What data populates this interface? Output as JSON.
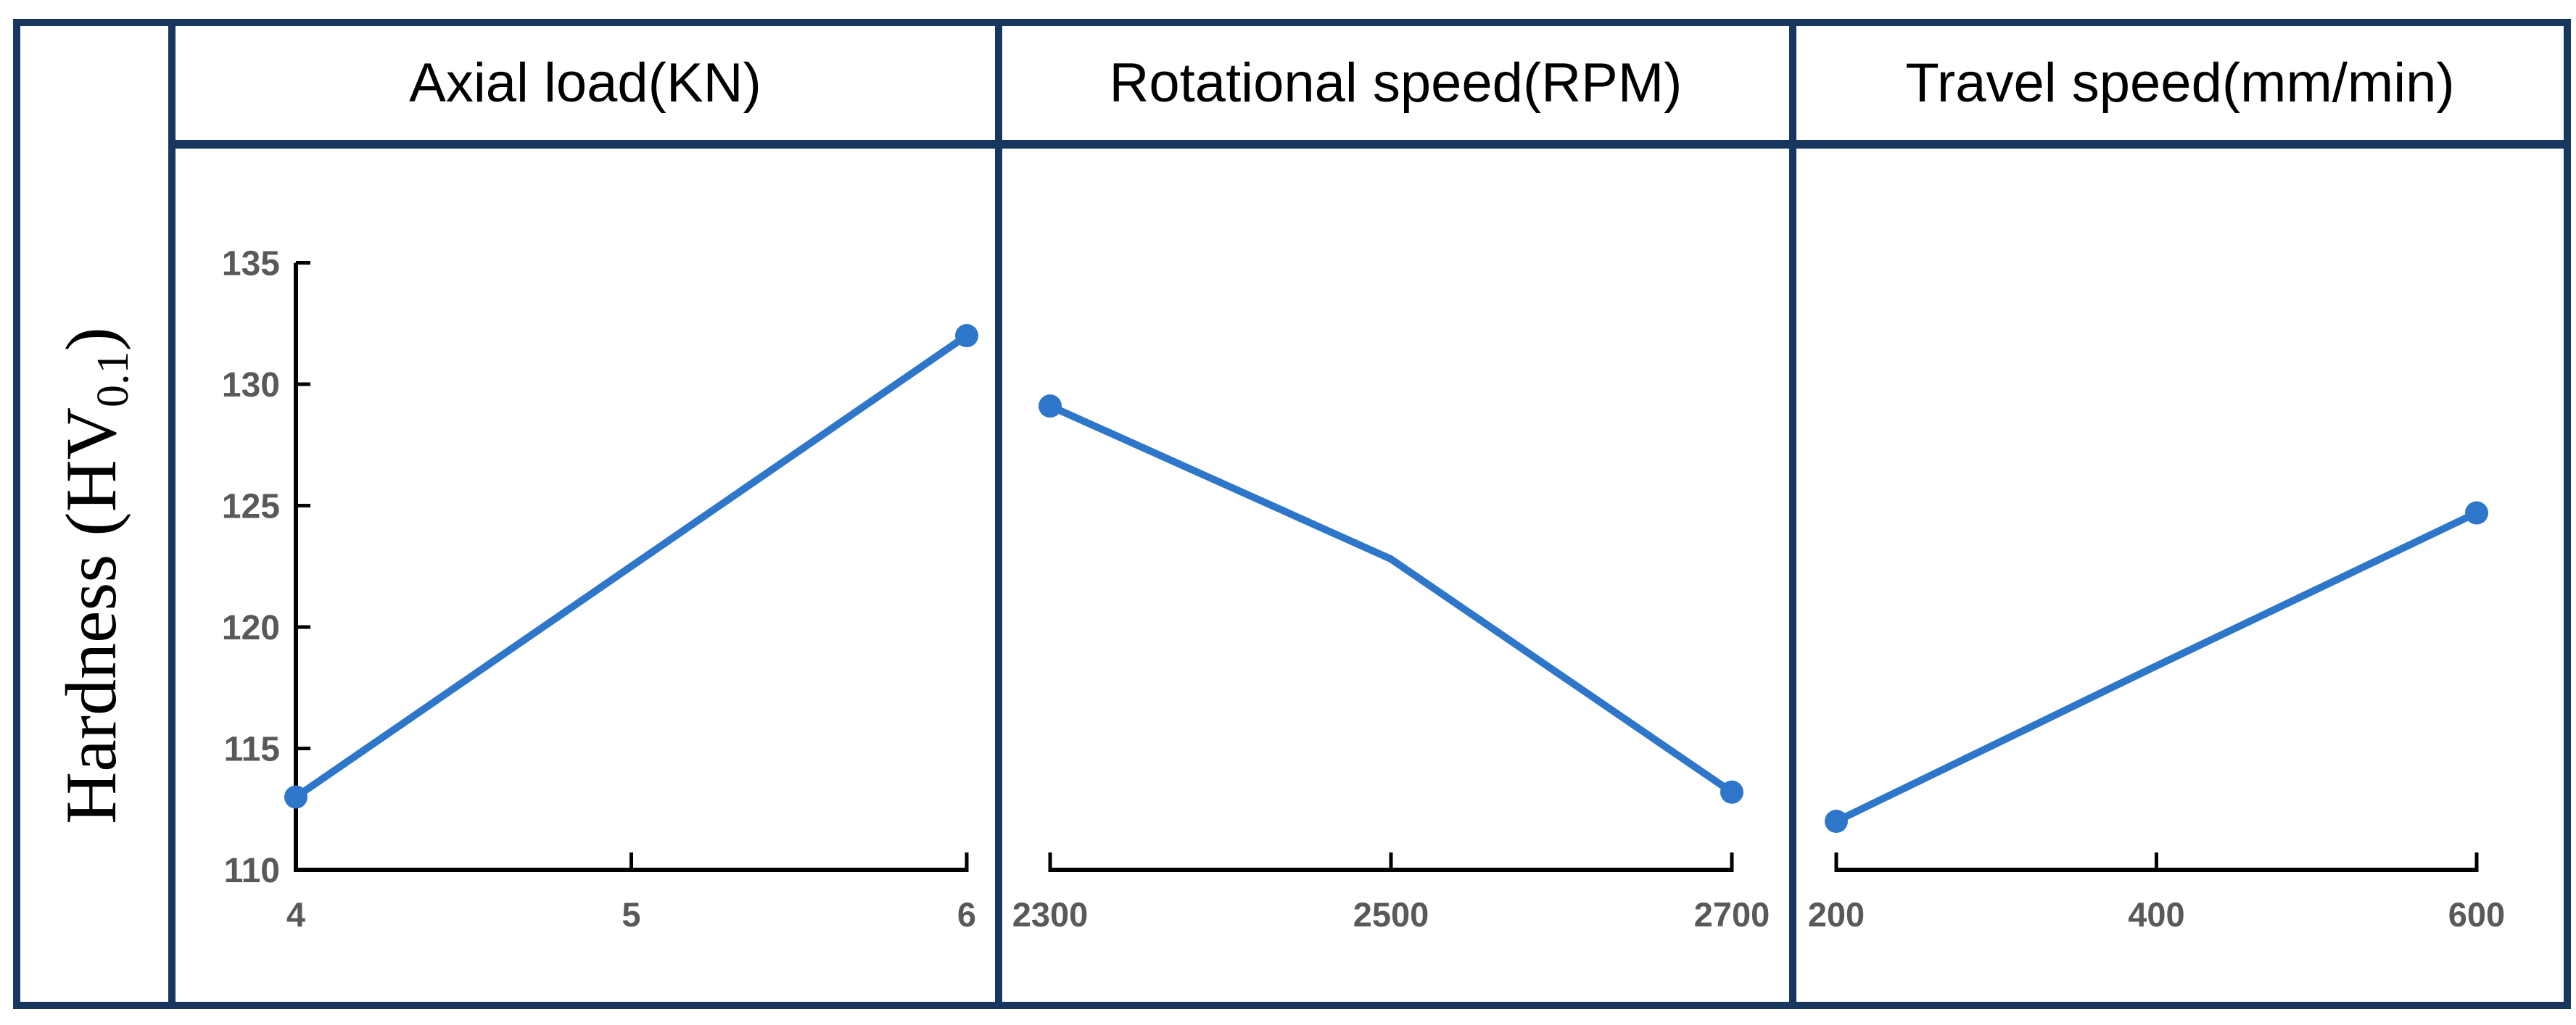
{
  "ylabel": {
    "text": "Hardness (HV",
    "sub": "0.1",
    "close": ")"
  },
  "colors": {
    "frame": "#17375E",
    "series": "#2D76C9",
    "axis": "#000000",
    "tick_label": "#595959",
    "header_text": "#000000",
    "background": "#FFFFFF"
  },
  "chart_data": [
    {
      "type": "line",
      "title": "Axial load(KN)",
      "categories": [
        "4",
        "5",
        "6"
      ],
      "points": [
        {
          "x": "4",
          "y": 113,
          "marker": true
        },
        {
          "x": "5",
          "y": 122.5,
          "marker": false
        },
        {
          "x": "6",
          "y": 132,
          "marker": true
        }
      ],
      "ylim": [
        110,
        135
      ],
      "yticks": [
        "110",
        "115",
        "120",
        "125",
        "130",
        "135"
      ],
      "y_axis_shown": true,
      "grid": false,
      "legend": "none"
    },
    {
      "type": "line",
      "title": "Rotational speed(RPM)",
      "categories": [
        "2300",
        "2500",
        "2700"
      ],
      "points": [
        {
          "x": "2300",
          "y": 129.1,
          "marker": true
        },
        {
          "x": "2500",
          "y": 122.8,
          "marker": false
        },
        {
          "x": "2700",
          "y": 113.2,
          "marker": true
        }
      ],
      "ylim": [
        110,
        135
      ],
      "yticks": [],
      "y_axis_shown": false,
      "grid": false,
      "legend": "none"
    },
    {
      "type": "line",
      "title": "Travel speed(mm/min)",
      "categories": [
        "200",
        "400",
        "600"
      ],
      "points": [
        {
          "x": "200",
          "y": 112,
          "marker": true
        },
        {
          "x": "400",
          "y": 118.4,
          "marker": false
        },
        {
          "x": "600",
          "y": 124.7,
          "marker": true
        }
      ],
      "ylim": [
        110,
        135
      ],
      "yticks": [],
      "y_axis_shown": false,
      "grid": false,
      "legend": "none"
    }
  ]
}
